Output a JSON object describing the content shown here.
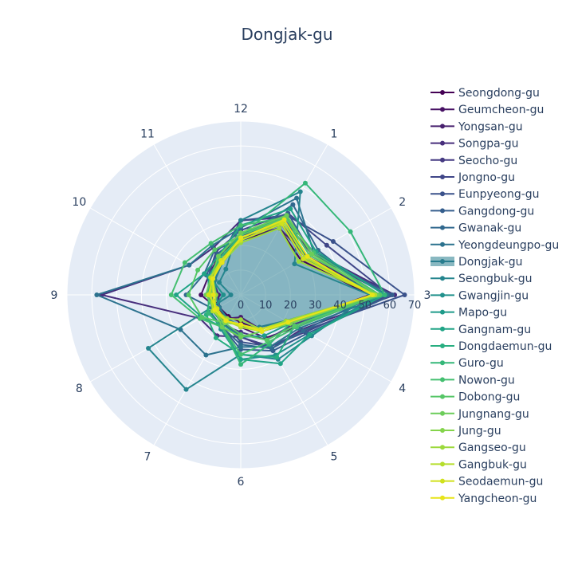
{
  "chart_data": {
    "type": "radar",
    "title": "Dongjak-gu",
    "theta_labels": [
      "1",
      "2",
      "3",
      "4",
      "5",
      "6",
      "7",
      "8",
      "9",
      "10",
      "11",
      "12"
    ],
    "radial_ticks": [
      0,
      10,
      20,
      30,
      40,
      50,
      60,
      70
    ],
    "rlim": [
      0,
      70
    ],
    "highlighted_series": "Dongjak-gu",
    "legend_position": "right",
    "series": [
      {
        "name": "Seongdong-gu",
        "color": "#440154",
        "values": [
          31,
          28,
          52,
          23,
          17,
          11,
          10,
          10,
          12,
          13,
          16,
          22
        ]
      },
      {
        "name": "Geumcheon-gu",
        "color": "#471164",
        "values": [
          33,
          30,
          55,
          26,
          20,
          13,
          11,
          11,
          16,
          15,
          18,
          24
        ]
      },
      {
        "name": "Yongsan-gu",
        "color": "#48206e",
        "values": [
          31,
          31,
          56,
          21,
          16,
          9,
          11,
          10,
          9,
          13,
          16,
          23
        ]
      },
      {
        "name": "Songpa-gu",
        "color": "#472e7c",
        "values": [
          36,
          34,
          62,
          28,
          25,
          17,
          19,
          19,
          56,
          24,
          22,
          30
        ]
      },
      {
        "name": "Seocho-gu",
        "color": "#453a82",
        "values": [
          35,
          33,
          59,
          24,
          21,
          15,
          14,
          13,
          12,
          14,
          16,
          24
        ]
      },
      {
        "name": "Jongno-gu",
        "color": "#404688",
        "values": [
          38,
          40,
          60,
          30,
          24,
          17,
          13,
          12,
          12,
          15,
          20,
          26
        ]
      },
      {
        "name": "Eunpyeong-gu",
        "color": "#3b528b",
        "values": [
          37,
          43,
          66,
          29,
          24,
          19,
          13,
          11,
          13,
          15,
          17,
          30
        ]
      },
      {
        "name": "Gangdong-gu",
        "color": "#355e8d",
        "values": [
          38,
          33,
          61,
          31,
          26,
          22,
          15,
          14,
          11,
          16,
          19,
          24
        ]
      },
      {
        "name": "Gwanak-gu",
        "color": "#31688e",
        "values": [
          42,
          36,
          54,
          29,
          25,
          20,
          15,
          12,
          22,
          17,
          21,
          22
        ]
      },
      {
        "name": "Yeongdeungpo-gu",
        "color": "#2c728e",
        "values": [
          45,
          34,
          59,
          27,
          24,
          21,
          28,
          28,
          58,
          24,
          23,
          27
        ]
      },
      {
        "name": "Dongjak-gu",
        "color": "#287d8e",
        "values": [
          33,
          29,
          55,
          21,
          15,
          13,
          11,
          10,
          10,
          12,
          15,
          22
        ]
      },
      {
        "name": "Seongbuk-gu",
        "color": "#25858e",
        "values": [
          48,
          25,
          52,
          33,
          30,
          24,
          44,
          43,
          4,
          10,
          12,
          30
        ]
      },
      {
        "name": "Gwangjin-gu",
        "color": "#21918c",
        "values": [
          36,
          32,
          56,
          32,
          28,
          26,
          16,
          14,
          7,
          14,
          17,
          23
        ]
      },
      {
        "name": "Mapo-gu",
        "color": "#1e9b8a",
        "values": [
          37,
          30,
          55,
          23,
          19,
          17,
          14,
          13,
          13,
          15,
          17,
          24
        ]
      },
      {
        "name": "Gangnam-gu",
        "color": "#20a486",
        "values": [
          40,
          35,
          58,
          32,
          32,
          26,
          15,
          18,
          26,
          17,
          18,
          28
        ]
      },
      {
        "name": "Dongdaemun-gu",
        "color": "#28ae80",
        "values": [
          35,
          30,
          53,
          25,
          29,
          24,
          20,
          16,
          12,
          13,
          18,
          25
        ]
      },
      {
        "name": "Guro-gu",
        "color": "#35b779",
        "values": [
          52,
          51,
          58,
          23,
          23,
          28,
          15,
          15,
          13,
          14,
          17,
          24
        ]
      },
      {
        "name": "Nowon-gu",
        "color": "#44bf70",
        "values": [
          36,
          34,
          56,
          26,
          22,
          24,
          15,
          19,
          28,
          26,
          24,
          28
        ]
      },
      {
        "name": "Dobong-gu",
        "color": "#56c667",
        "values": [
          36,
          32,
          56,
          25,
          21,
          16,
          13,
          18,
          21,
          20,
          21,
          24
        ]
      },
      {
        "name": "Jungnang-gu",
        "color": "#6ccd5a",
        "values": [
          37,
          33,
          55,
          23,
          17,
          17,
          15,
          12,
          14,
          14,
          18,
          25
        ]
      },
      {
        "name": "Jung-gu",
        "color": "#84d44b",
        "values": [
          34,
          30,
          54,
          23,
          17,
          12,
          13,
          13,
          11,
          14,
          16,
          23
        ]
      },
      {
        "name": "Gangseo-gu",
        "color": "#9bd93c",
        "values": [
          31,
          27,
          54,
          21,
          16,
          10,
          11,
          12,
          10,
          13,
          15,
          21
        ]
      },
      {
        "name": "Gangbuk-gu",
        "color": "#b5de2b",
        "values": [
          34,
          30,
          54,
          22,
          17,
          13,
          12,
          13,
          12,
          14,
          16,
          23
        ]
      },
      {
        "name": "Seodaemun-gu",
        "color": "#d0e11c",
        "values": [
          33,
          29,
          53,
          22,
          16,
          12,
          12,
          11,
          13,
          13,
          16,
          22
        ]
      },
      {
        "name": "Yangcheon-gu",
        "color": "#e7e419",
        "values": [
          35,
          31,
          53,
          22,
          17,
          12,
          12,
          12,
          11,
          13,
          15,
          23
        ]
      }
    ]
  }
}
